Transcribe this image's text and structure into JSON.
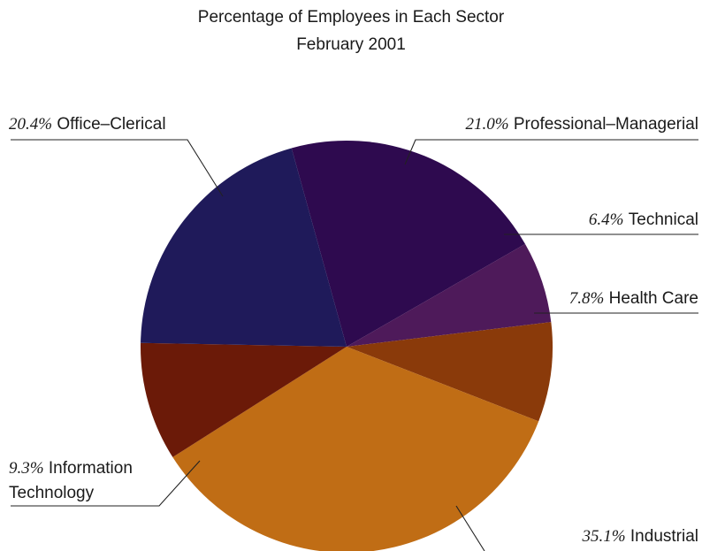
{
  "chart_data": {
    "type": "pie",
    "title": "Percentage of Employees in Each Sector",
    "subtitle": "February 2001",
    "slices": [
      {
        "label": "Professional–Managerial",
        "pct_text": "21.0%",
        "value": 21.0,
        "color": "#2e0a4f"
      },
      {
        "label": "Technical",
        "pct_text": "6.4%",
        "value": 6.4,
        "color": "#4e1a5a"
      },
      {
        "label": "Health Care",
        "pct_text": "7.8%",
        "value": 7.8,
        "color": "#8a3a0a"
      },
      {
        "label": "Industrial",
        "pct_text": "35.1%",
        "value": 35.1,
        "color": "#c06d15"
      },
      {
        "label": "Information Technology",
        "label_lines": [
          "Information",
          "Technology"
        ],
        "pct_text": "9.3%",
        "value": 9.3,
        "color": "#6b1a08"
      },
      {
        "label": "Office–Clerical",
        "pct_text": "20.4%",
        "value": 20.4,
        "color": "#1f1a5a"
      }
    ]
  }
}
